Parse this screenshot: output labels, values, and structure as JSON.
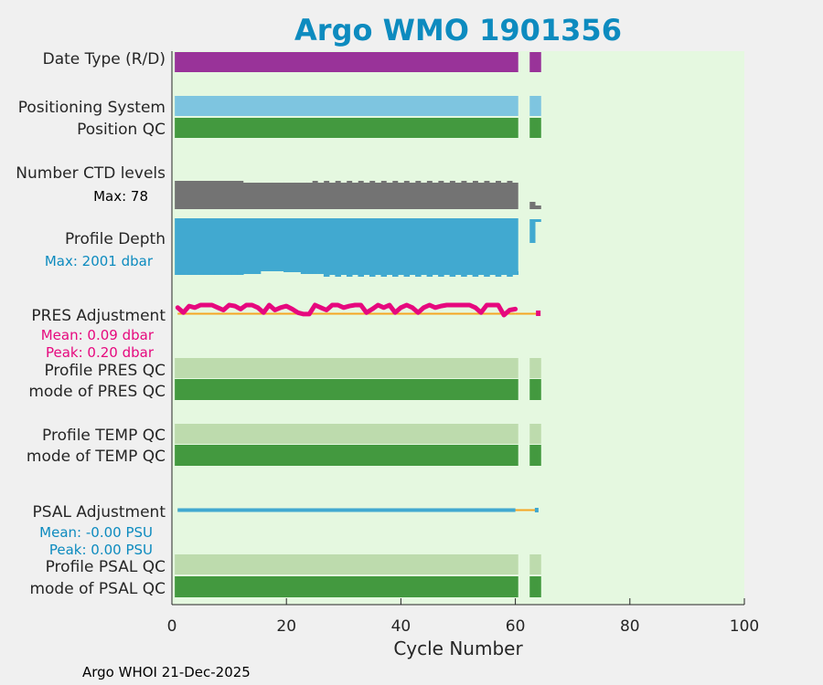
{
  "chart_data": {
    "type": "bar",
    "title": "Argo WMO 1901356",
    "xlabel": "Cycle Number",
    "xlim": [
      0,
      100
    ],
    "xticks": [
      "0",
      "20",
      "40",
      "60",
      "80",
      "100"
    ],
    "footer": "Argo WHOI 21-Dec-2025",
    "rows": [
      {
        "name": "date-type",
        "label": "Date Type (R/D)"
      },
      {
        "name": "positioning-system",
        "label": "Positioning System"
      },
      {
        "name": "position-qc",
        "label": "Position QC"
      },
      {
        "name": "number-ctd-levels",
        "label": "Number CTD levels",
        "sub": "Max: 78"
      },
      {
        "name": "profile-depth",
        "label": "Profile Depth",
        "sub": "Max: 2001 dbar"
      },
      {
        "name": "pres-adjustment",
        "label": "PRES Adjustment",
        "sub": "Mean: 0.09 dbar",
        "sub2": "Peak: 0.20 dbar"
      },
      {
        "name": "profile-pres-qc",
        "label": "Profile PRES QC"
      },
      {
        "name": "mode-pres-qc",
        "label": "mode of PRES QC"
      },
      {
        "name": "profile-temp-qc",
        "label": "Profile TEMP QC"
      },
      {
        "name": "mode-temp-qc",
        "label": "mode of TEMP QC"
      },
      {
        "name": "psal-adjustment",
        "label": "PSAL Adjustment",
        "sub": "Mean: -0.00 PSU",
        "sub2": "Peak: 0.00 PSU"
      },
      {
        "name": "profile-psal-qc",
        "label": "Profile PSAL QC"
      },
      {
        "name": "mode-psal-qc",
        "label": "mode of PSAL QC"
      }
    ],
    "cycle_segments": [
      [
        0.5,
        60.5
      ],
      [
        62.5,
        64.5
      ]
    ],
    "ctd_levels_max": 78,
    "profile_depth_max_dbar": 2001,
    "pres_adjustment": {
      "mean": 0.09,
      "peak": 0.2
    },
    "psal_adjustment": {
      "mean": -0.0,
      "peak": 0.0
    },
    "colors": {
      "background": "#e5f8e0",
      "title": "#0d8bbf",
      "date_type": "#993399",
      "positioning": "#7ec5e0",
      "qc_dark": "#43993f",
      "qc_light": "#bddbad",
      "ctd": "#737373",
      "depth": "#41a9d0",
      "pres_line": "#e6087e",
      "pres_ref": "#f5a623",
      "psal_line": "#41a9d0",
      "pres_text": "#e6087e",
      "psal_text": "#0d8bbf"
    }
  }
}
